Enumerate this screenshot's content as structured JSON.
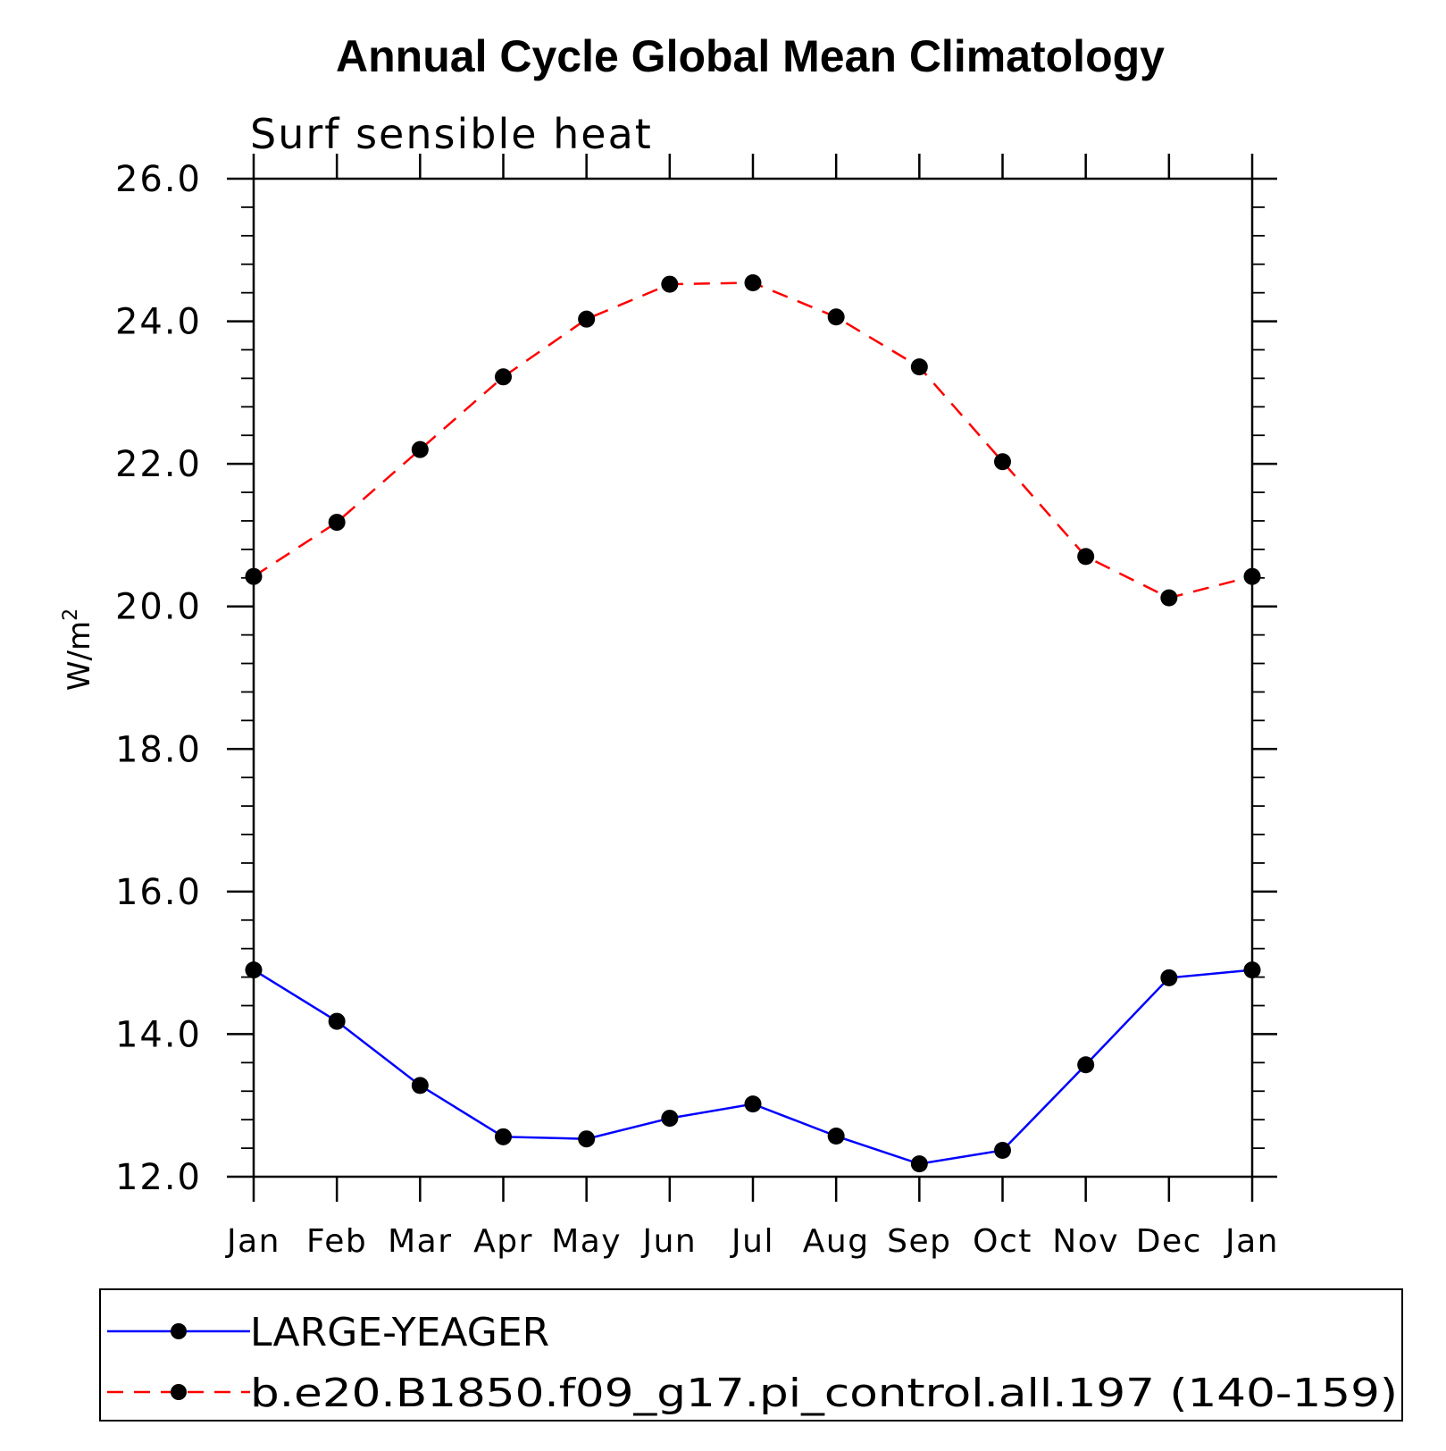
{
  "chart_data": {
    "type": "line",
    "title": "Annual Cycle Global Mean Climatology",
    "subtitle": "Surf sensible heat",
    "ylabel_base": "W/m",
    "ylabel_sup": "2",
    "xlabel": "",
    "categories": [
      "Jan",
      "Feb",
      "Mar",
      "Apr",
      "May",
      "Jun",
      "Jul",
      "Aug",
      "Sep",
      "Oct",
      "Nov",
      "Dec",
      "Jan"
    ],
    "ylim": [
      12.0,
      26.0
    ],
    "yticks": [
      12.0,
      14.0,
      16.0,
      18.0,
      20.0,
      22.0,
      24.0,
      26.0
    ],
    "ytick_labels": [
      "12.0",
      "14.0",
      "16.0",
      "18.0",
      "20.0",
      "22.0",
      "24.0",
      "26.0"
    ],
    "grid": false,
    "legend_position": "bottom",
    "series": [
      {
        "name": "LARGE-YEAGER",
        "color": "#0000ff",
        "dash": "solid",
        "marker": "filled-circle",
        "values": [
          14.9,
          14.18,
          13.28,
          12.56,
          12.53,
          12.82,
          13.02,
          12.57,
          12.18,
          12.37,
          13.57,
          14.79,
          14.9
        ]
      },
      {
        "name": "b.e20.B1850.f09_g17.pi_control.all.197 (140-159)",
        "color": "#ff0000",
        "dash": "dashed",
        "marker": "filled-circle",
        "values": [
          20.42,
          21.18,
          22.2,
          23.22,
          24.03,
          24.52,
          24.54,
          24.06,
          23.36,
          22.03,
          20.7,
          20.12,
          20.42
        ]
      }
    ]
  }
}
